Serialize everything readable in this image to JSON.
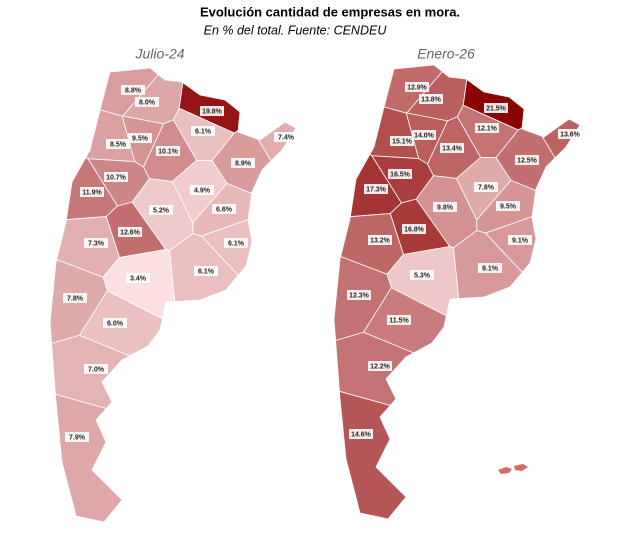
{
  "title": "Evolución cantidad de empresas en mora.",
  "subtitle": "En % del total. Fuente: CENDEU",
  "maps": [
    {
      "title": "Julio-24",
      "regions": [
        {
          "value": 8.8,
          "label": "8.8%"
        },
        {
          "value": 8.0,
          "label": "8.0%"
        },
        {
          "value": 19.8,
          "label": "19.8%"
        },
        {
          "value": 6.1,
          "label": "6.1%"
        },
        {
          "value": 7.4,
          "label": "7.4%"
        },
        {
          "value": 9.5,
          "label": "9.5%"
        },
        {
          "value": 8.5,
          "label": "8.5%"
        },
        {
          "value": 10.1,
          "label": "10.1%"
        },
        {
          "value": 8.9,
          "label": "8.9%"
        },
        {
          "value": 10.7,
          "label": "10.7%"
        },
        {
          "value": 11.9,
          "label": "11.9%"
        },
        {
          "value": 4.9,
          "label": "4.9%"
        },
        {
          "value": 5.2,
          "label": "5.2%"
        },
        {
          "value": 6.6,
          "label": "6.6%"
        },
        {
          "value": 12.6,
          "label": "12.6%"
        },
        {
          "value": 7.3,
          "label": "7.3%"
        },
        {
          "value": 6.1,
          "label": "6.1%"
        },
        {
          "value": 3.4,
          "label": "3.4%"
        },
        {
          "value": 6.1,
          "label": "6.1%"
        },
        {
          "value": 7.8,
          "label": "7.8%"
        },
        {
          "value": 6.0,
          "label": "6.0%"
        },
        {
          "value": 7.0,
          "label": "7.0%"
        },
        {
          "value": 7.9,
          "label": "7.9%"
        }
      ]
    },
    {
      "title": "Enero-26",
      "regions": [
        {
          "value": 12.9,
          "label": "12.9%"
        },
        {
          "value": 13.8,
          "label": "13.8%"
        },
        {
          "value": 21.5,
          "label": "21.5%"
        },
        {
          "value": 12.1,
          "label": "12.1%"
        },
        {
          "value": 13.6,
          "label": "13.6%"
        },
        {
          "value": 14.0,
          "label": "14.0%"
        },
        {
          "value": 15.1,
          "label": "15.1%"
        },
        {
          "value": 13.4,
          "label": "13.4%"
        },
        {
          "value": 12.5,
          "label": "12.5%"
        },
        {
          "value": 16.5,
          "label": "16.5%"
        },
        {
          "value": 17.3,
          "label": "17.3%"
        },
        {
          "value": 7.8,
          "label": "7.8%"
        },
        {
          "value": 9.8,
          "label": "9.8%"
        },
        {
          "value": 9.5,
          "label": "9.5%"
        },
        {
          "value": 16.8,
          "label": "16.8%"
        },
        {
          "value": 13.2,
          "label": "13.2%"
        },
        {
          "value": 9.1,
          "label": "9.1%"
        },
        {
          "value": 5.3,
          "label": "5.3%"
        },
        {
          "value": 9.1,
          "label": "9.1%"
        },
        {
          "value": 12.3,
          "label": "12.3%"
        },
        {
          "value": 11.5,
          "label": "11.5%"
        },
        {
          "value": 12.2,
          "label": "12.2%"
        },
        {
          "value": 14.6,
          "label": "14.6%"
        }
      ]
    }
  ]
}
